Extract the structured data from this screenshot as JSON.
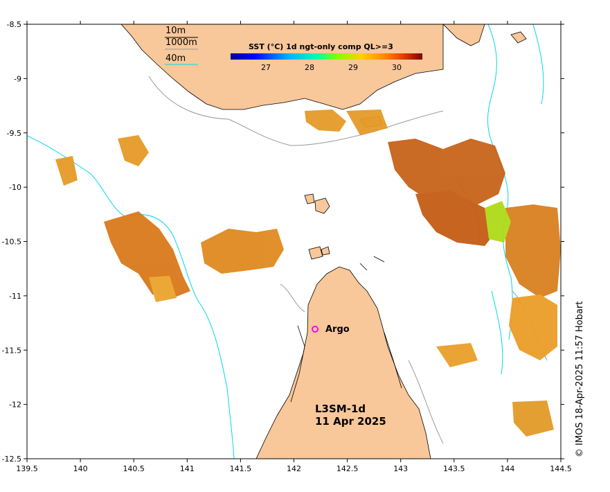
{
  "map": {
    "lon_ticks": [
      "139.5",
      "140",
      "140.5",
      "141",
      "141.5",
      "142",
      "142.5",
      "143",
      "143.5",
      "144",
      "144.5"
    ],
    "lat_ticks": [
      "-8.5",
      "-9",
      "-9.5",
      "-10",
      "-10.5",
      "-11",
      "-11.5",
      "-12",
      "-12.5"
    ],
    "lon_range": [
      139.5,
      144.5
    ],
    "lat_range": [
      -12.5,
      -8.5
    ],
    "colors": {
      "land": "#f8c79a",
      "ocean": "#ffffff",
      "contour_10m": "#000000",
      "contour_1000m": "#9a9a9a",
      "contour_40m": "#00d8e8",
      "argo_marker": "#ff00ff"
    }
  },
  "contour_legend": {
    "items": [
      "10m",
      "1000m",
      "40m"
    ]
  },
  "colorbar": {
    "title": "SST (°C) 1d ngt-only comp QL>=3",
    "ticks": [
      "27",
      "28",
      "29",
      "30"
    ],
    "range": [
      26.2,
      30.6
    ],
    "colormap": "jet"
  },
  "product": {
    "name": "L3SM-1d",
    "date": "11 Apr 2025"
  },
  "argo": {
    "label": "Argo",
    "lon": 142.2,
    "lat": -11.3
  },
  "credit": "© IMOS 18-Apr-2025 11:57 Hobart"
}
